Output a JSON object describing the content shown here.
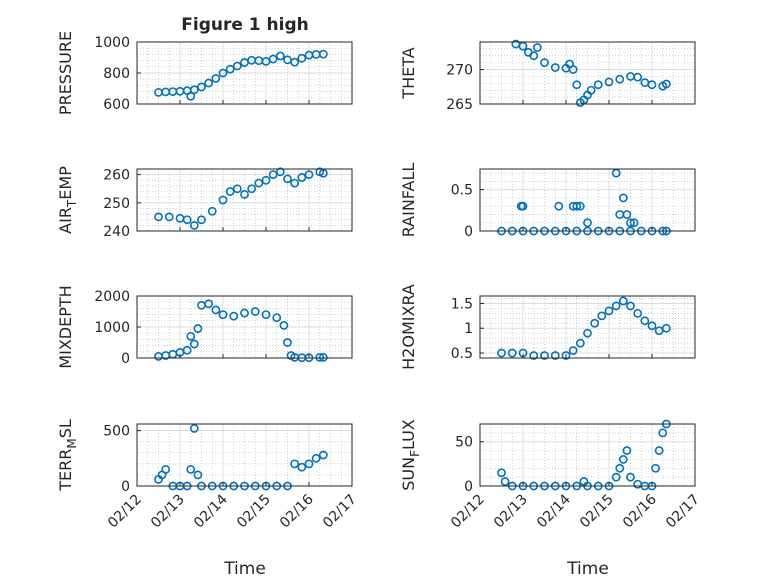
{
  "figure": {
    "title": "Figure 1 high",
    "xlabel": "Time",
    "xticks": [
      "02/12",
      "02/13",
      "02/14",
      "02/15",
      "02/16",
      "02/17"
    ]
  },
  "colors": {
    "marker": "#0072BD",
    "axis": "#262626",
    "grid": "#bdbdbd"
  },
  "chart_data": [
    {
      "type": "scatter",
      "ylabel": "PRESSURE",
      "title": "Figure 1 high",
      "xlim": [
        "02/12",
        "02/17"
      ],
      "ylim": [
        600,
        1000
      ],
      "yticks": [
        600,
        800,
        1000
      ],
      "x": [
        "02/12 12:00",
        "02/12 16:00",
        "02/12 20:00",
        "02/13 00:00",
        "02/13 04:00",
        "02/13 06:00",
        "02/13 08:00",
        "02/13 12:00",
        "02/13 16:00",
        "02/13 20:00",
        "02/14 00:00",
        "02/14 04:00",
        "02/14 08:00",
        "02/14 12:00",
        "02/14 16:00",
        "02/14 20:00",
        "02/15 00:00",
        "02/15 04:00",
        "02/15 08:00",
        "02/15 12:00",
        "02/15 16:00",
        "02/15 20:00",
        "02/16 00:00",
        "02/16 04:00",
        "02/16 08:00"
      ],
      "y": [
        675,
        678,
        680,
        682,
        686,
        650,
        692,
        710,
        735,
        765,
        800,
        825,
        845,
        868,
        882,
        880,
        875,
        890,
        910,
        885,
        870,
        895,
        915,
        920,
        922
      ]
    },
    {
      "type": "scatter",
      "ylabel": "THETA",
      "xlim": [
        "02/12",
        "02/17"
      ],
      "ylim": [
        265,
        274
      ],
      "yticks": [
        265,
        270
      ],
      "x": [
        "02/12 20:00",
        "02/13 00:00",
        "02/13 03:00",
        "02/13 06:00",
        "02/13 08:00",
        "02/13 12:00",
        "02/13 18:00",
        "02/14 00:00",
        "02/14 02:00",
        "02/14 04:00",
        "02/14 06:00",
        "02/14 08:00",
        "02/14 10:00",
        "02/14 12:00",
        "02/14 14:00",
        "02/14 18:00",
        "02/15 00:00",
        "02/15 06:00",
        "02/15 12:00",
        "02/15 16:00",
        "02/15 20:00",
        "02/16 00:00",
        "02/16 06:00",
        "02/16 08:00"
      ],
      "y": [
        273.7,
        273.4,
        272.5,
        272.0,
        273.2,
        271.0,
        270.3,
        270.2,
        270.8,
        270.0,
        267.8,
        265.2,
        265.6,
        266.3,
        267.0,
        267.8,
        268.2,
        268.6,
        269.0,
        268.9,
        268.1,
        267.8,
        267.6,
        267.9
      ]
    },
    {
      "type": "scatter",
      "ylabel": "AIR_TEMP",
      "xlim": [
        "02/12",
        "02/17"
      ],
      "ylim": [
        240,
        262
      ],
      "yticks": [
        240,
        250,
        260
      ],
      "x": [
        "02/12 12:00",
        "02/12 18:00",
        "02/13 00:00",
        "02/13 04:00",
        "02/13 08:00",
        "02/13 12:00",
        "02/13 18:00",
        "02/14 00:00",
        "02/14 04:00",
        "02/14 08:00",
        "02/14 12:00",
        "02/14 16:00",
        "02/14 20:00",
        "02/15 00:00",
        "02/15 04:00",
        "02/15 08:00",
        "02/15 12:00",
        "02/15 16:00",
        "02/15 20:00",
        "02/16 00:00",
        "02/16 06:00",
        "02/16 08:00"
      ],
      "y": [
        245,
        245,
        244.5,
        244,
        242,
        244,
        247,
        251,
        254,
        255,
        253,
        255,
        257,
        258,
        260,
        261,
        258.5,
        257,
        259,
        260,
        261,
        260.5
      ]
    },
    {
      "type": "scatter",
      "ylabel": "RAINFALL",
      "xlim": [
        "02/12",
        "02/17"
      ],
      "ylim": [
        0,
        0.75
      ],
      "yticks": [
        0,
        0.5
      ],
      "x": [
        "02/12 12:00",
        "02/12 18:00",
        "02/13 00:00",
        "02/13 06:00",
        "02/13 12:00",
        "02/13 18:00",
        "02/14 00:00",
        "02/14 06:00",
        "02/14 12:00",
        "02/14 18:00",
        "02/15 00:00",
        "02/15 06:00",
        "02/15 12:00",
        "02/15 18:00",
        "02/16 00:00",
        "02/16 06:00",
        "02/16 08:00",
        "02/12 23:00",
        "02/13 00:00",
        "02/13 20:00",
        "02/14 04:00",
        "02/14 06:00",
        "02/14 08:00",
        "02/14 12:00",
        "02/15 04:00",
        "02/15 06:00",
        "02/15 08:00",
        "02/15 10:00",
        "02/15 12:00",
        "02/15 14:00"
      ],
      "y": [
        0,
        0,
        0,
        0,
        0,
        0,
        0,
        0,
        0,
        0,
        0,
        0,
        0,
        0,
        0,
        0,
        0,
        0.3,
        0.3,
        0.3,
        0.3,
        0.3,
        0.3,
        0.1,
        0.7,
        0.2,
        0.4,
        0.2,
        0.1,
        0.1
      ]
    },
    {
      "type": "scatter",
      "ylabel": "MIXDEPTH",
      "xlim": [
        "02/12",
        "02/17"
      ],
      "ylim": [
        0,
        2000
      ],
      "yticks": [
        0,
        1000,
        2000
      ],
      "x": [
        "02/12 12:00",
        "02/12 16:00",
        "02/12 20:00",
        "02/13 00:00",
        "02/13 04:00",
        "02/13 06:00",
        "02/13 08:00",
        "02/13 10:00",
        "02/13 12:00",
        "02/13 16:00",
        "02/13 20:00",
        "02/14 00:00",
        "02/14 06:00",
        "02/14 12:00",
        "02/14 18:00",
        "02/15 00:00",
        "02/15 06:00",
        "02/15 10:00",
        "02/15 12:00",
        "02/15 14:00",
        "02/15 16:00",
        "02/15 20:00",
        "02/16 00:00",
        "02/16 06:00",
        "02/16 08:00"
      ],
      "y": [
        50,
        80,
        120,
        180,
        250,
        700,
        450,
        950,
        1700,
        1750,
        1550,
        1400,
        1350,
        1450,
        1500,
        1400,
        1300,
        1050,
        500,
        80,
        20,
        10,
        10,
        20,
        20
      ]
    },
    {
      "type": "scatter",
      "ylabel": "H2OMIXRA",
      "xlim": [
        "02/12",
        "02/17"
      ],
      "ylim": [
        0.4,
        1.65
      ],
      "yticks": [
        0.5,
        1,
        1.5
      ],
      "x": [
        "02/12 12:00",
        "02/12 18:00",
        "02/13 00:00",
        "02/13 06:00",
        "02/13 12:00",
        "02/13 18:00",
        "02/14 00:00",
        "02/14 04:00",
        "02/14 08:00",
        "02/14 12:00",
        "02/14 16:00",
        "02/14 20:00",
        "02/15 00:00",
        "02/15 04:00",
        "02/15 08:00",
        "02/15 12:00",
        "02/15 16:00",
        "02/15 20:00",
        "02/16 00:00",
        "02/16 04:00",
        "02/16 08:00"
      ],
      "y": [
        0.5,
        0.5,
        0.5,
        0.45,
        0.45,
        0.45,
        0.45,
        0.55,
        0.7,
        0.9,
        1.1,
        1.25,
        1.35,
        1.45,
        1.55,
        1.45,
        1.3,
        1.15,
        1.05,
        0.95,
        1.0
      ]
    },
    {
      "type": "scatter",
      "ylabel": "TERR_MSL",
      "xlim": [
        "02/12",
        "02/17"
      ],
      "ylim": [
        0,
        560
      ],
      "yticks": [
        0,
        500
      ],
      "x": [
        "02/12 12:00",
        "02/12 14:00",
        "02/12 16:00",
        "02/12 20:00",
        "02/13 00:00",
        "02/13 04:00",
        "02/13 06:00",
        "02/13 08:00",
        "02/13 10:00",
        "02/13 12:00",
        "02/13 18:00",
        "02/14 00:00",
        "02/14 06:00",
        "02/14 12:00",
        "02/14 18:00",
        "02/15 00:00",
        "02/15 06:00",
        "02/15 12:00",
        "02/15 16:00",
        "02/15 20:00",
        "02/16 00:00",
        "02/16 04:00",
        "02/16 08:00"
      ],
      "y": [
        60,
        100,
        150,
        0,
        0,
        0,
        150,
        520,
        100,
        0,
        0,
        0,
        0,
        0,
        0,
        0,
        0,
        0,
        200,
        170,
        200,
        250,
        280
      ]
    },
    {
      "type": "scatter",
      "ylabel": "SUN_FLUX",
      "xlim": [
        "02/12",
        "02/17"
      ],
      "ylim": [
        0,
        70
      ],
      "yticks": [
        0,
        50
      ],
      "x": [
        "02/12 12:00",
        "02/12 14:00",
        "02/12 18:00",
        "02/13 00:00",
        "02/13 06:00",
        "02/13 12:00",
        "02/13 18:00",
        "02/14 00:00",
        "02/14 06:00",
        "02/14 10:00",
        "02/14 12:00",
        "02/14 18:00",
        "02/15 00:00",
        "02/15 04:00",
        "02/15 06:00",
        "02/15 08:00",
        "02/15 10:00",
        "02/15 12:00",
        "02/15 16:00",
        "02/15 20:00",
        "02/16 00:00",
        "02/16 02:00",
        "02/16 04:00",
        "02/16 06:00",
        "02/16 08:00"
      ],
      "y": [
        15,
        5,
        0,
        0,
        0,
        0,
        0,
        0,
        0,
        5,
        0,
        0,
        0,
        10,
        20,
        30,
        40,
        10,
        2,
        0,
        0,
        20,
        40,
        60,
        70
      ]
    }
  ]
}
